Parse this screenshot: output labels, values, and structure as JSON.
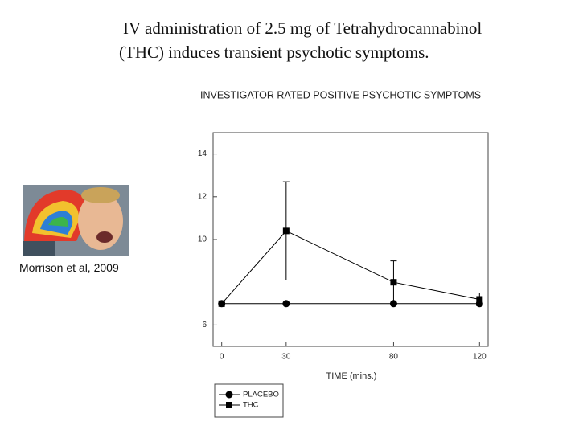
{
  "slide": {
    "title_lines": [
      "IV administration of 2.5 mg of Tetrahydrocannabinol",
      "(THC)  induces transient psychotic symptoms."
    ],
    "caption": "Morrison et al, 2009"
  },
  "chart_data": {
    "type": "line",
    "title": "INVESTIGATOR RATED POSITIVE PSYCHOTIC SYMPTOMS",
    "x_label": "TIME (mins.)",
    "x": [
      0,
      30,
      80,
      120
    ],
    "xlim": [
      -4,
      124
    ],
    "xticks": [
      0,
      30,
      80,
      120
    ],
    "ylim": [
      5,
      15
    ],
    "yticks": [
      6,
      10,
      12,
      14
    ],
    "series": [
      {
        "name": "PLACEBO",
        "color": "#000000",
        "marker": "circle",
        "values": [
          7,
          7,
          7,
          7
        ]
      },
      {
        "name": "THC",
        "color": "#000000",
        "marker": "square",
        "values": [
          7,
          10.4,
          8,
          7.2
        ],
        "errors": [
          0,
          2.3,
          1,
          0.3
        ]
      }
    ],
    "legend": "bottom-left"
  }
}
